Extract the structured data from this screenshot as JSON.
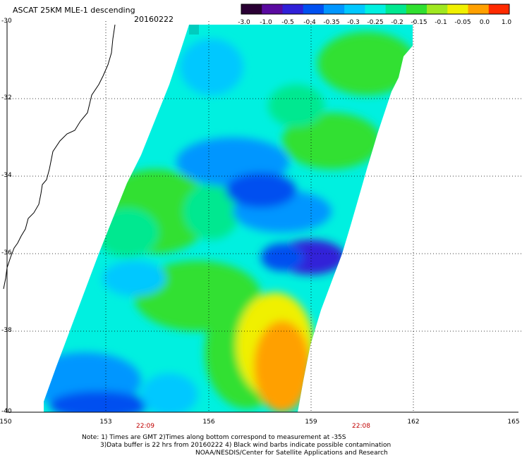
{
  "title": "ASCAT 25KM MLE-1 descending",
  "date": "20160222",
  "colorbar": {
    "labels": [
      "-3.0",
      "-1.0",
      "-0.5",
      "-0.4",
      "-0.35",
      "-0.3",
      "-0.25",
      "-0.2",
      "-0.15",
      "-0.1",
      "-0.05",
      "0.0",
      "1.0"
    ],
    "colors": [
      "#2a0034",
      "#5a0aa0",
      "#3020d8",
      "#0050f0",
      "#0096ff",
      "#00c8ff",
      "#00f0e0",
      "#00e890",
      "#30e030",
      "#a0e820",
      "#f0f000",
      "#ffa000",
      "#ff2a00"
    ]
  },
  "y_axis": [
    "-30",
    "-32",
    "-34",
    "-36",
    "-38",
    "-40"
  ],
  "x_axis": [
    "150",
    "153",
    "156",
    "159",
    "162",
    "165"
  ],
  "times": [
    "22:09",
    "22:08"
  ],
  "notes": [
    "Note: 1) Times are GMT 2)Times along bottom correspond to measurement at -35S",
    "3)Data buffer is 22 hrs from 20160222 4) Black wind barbs indicate possible contamination",
    "NOAA/NESDIS/Center for Satellite Applications and Research"
  ]
}
